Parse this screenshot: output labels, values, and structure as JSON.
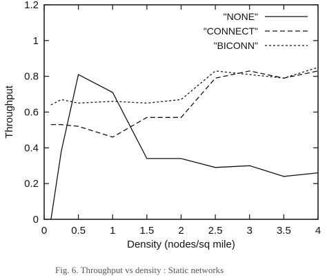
{
  "chart_data": {
    "type": "line",
    "xlabel": "Density (nodes/sq mile)",
    "ylabel": "Throughput",
    "xlim": [
      0,
      4
    ],
    "ylim": [
      0,
      1.2
    ],
    "x_ticks": [
      "0",
      "0.5",
      "1",
      "1.5",
      "2",
      "2.5",
      "3",
      "3.5",
      "4"
    ],
    "y_ticks": [
      "0",
      "0.2",
      "0.4",
      "0.6",
      "0.8",
      "1",
      "1.2"
    ],
    "grid": false,
    "legend_position": "top-right",
    "series": [
      {
        "name": "\"NONE\"",
        "style": "solid",
        "x": [
          0.1,
          0.25,
          0.5,
          1.0,
          1.5,
          2.0,
          2.5,
          3.0,
          3.5,
          4.0
        ],
        "y": [
          0.0,
          0.38,
          0.81,
          0.71,
          0.34,
          0.34,
          0.29,
          0.3,
          0.24,
          0.26
        ]
      },
      {
        "name": "\"CONNECT\"",
        "style": "dashed",
        "x": [
          0.1,
          0.25,
          0.5,
          1.0,
          1.5,
          2.0,
          2.5,
          3.0,
          3.5,
          4.0
        ],
        "y": [
          0.53,
          0.53,
          0.52,
          0.46,
          0.57,
          0.57,
          0.79,
          0.83,
          0.79,
          0.83
        ]
      },
      {
        "name": "\"BICONN\"",
        "style": "dotted",
        "x": [
          0.1,
          0.25,
          0.5,
          1.0,
          1.5,
          2.0,
          2.5,
          3.0,
          3.5,
          4.0
        ],
        "y": [
          0.64,
          0.67,
          0.65,
          0.66,
          0.65,
          0.67,
          0.83,
          0.81,
          0.79,
          0.85
        ]
      }
    ]
  },
  "caption": "Fig. 6.  Throughput vs density : Static networks"
}
